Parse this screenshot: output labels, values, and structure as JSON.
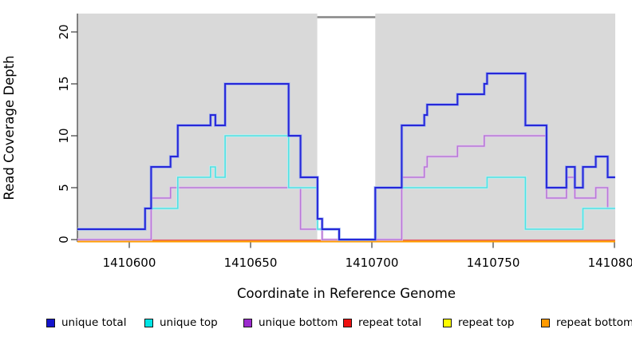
{
  "chart_data": {
    "type": "line",
    "step": "post",
    "title": "",
    "xlabel": "Coordinate in Reference Genome",
    "ylabel": "Read Coverage Depth",
    "xlim": [
      1410578.3,
      1410800.3
    ],
    "ylim": [
      0,
      21.8
    ],
    "x_ticks": [
      1410600,
      1410650,
      1410700,
      1410750,
      1410800
    ],
    "y_ticks": [
      0,
      5,
      10,
      15,
      20
    ],
    "grid": false,
    "plot_background": "#d9d9d9",
    "axis_color": "#3c3c3c",
    "masked_region": {
      "x_start": 1410677.5,
      "x_end": 1410701.4,
      "color": "#ffffff",
      "marker_color": "#8a8a8a"
    },
    "legend_position": "bottom",
    "series": [
      {
        "key": "unique_total",
        "name": "unique total",
        "color": "#2727d8",
        "legend_fill": "#1414cc",
        "points": [
          [
            1410578.3,
            1
          ],
          [
            1410606.5,
            3
          ],
          [
            1410609,
            7
          ],
          [
            1410617,
            8
          ],
          [
            1410620,
            11
          ],
          [
            1410633.5,
            12
          ],
          [
            1410635.5,
            11
          ],
          [
            1410639.5,
            15
          ],
          [
            1410665.7,
            10
          ],
          [
            1410670.6,
            6
          ],
          [
            1410677.6,
            2
          ],
          [
            1410679.5,
            1
          ],
          [
            1410686.5,
            0
          ],
          [
            1410701.4,
            5
          ],
          [
            1410712.3,
            11
          ],
          [
            1410721.6,
            12
          ],
          [
            1410722.8,
            13
          ],
          [
            1410735.3,
            14
          ],
          [
            1410746.3,
            15
          ],
          [
            1410747.5,
            16
          ],
          [
            1410763.3,
            11
          ],
          [
            1410772,
            5
          ],
          [
            1410780.2,
            7
          ],
          [
            1410783.7,
            5
          ],
          [
            1410787,
            7
          ],
          [
            1410792.3,
            8
          ],
          [
            1410797.2,
            6
          ]
        ]
      },
      {
        "key": "unique_top",
        "name": "unique top",
        "color": "#52dfe3",
        "legend_fill": "#00e5e5",
        "points": [
          [
            1410578.3,
            1
          ],
          [
            1410606.5,
            3
          ],
          [
            1410620,
            6
          ],
          [
            1410633.5,
            7
          ],
          [
            1410635.5,
            6
          ],
          [
            1410639.5,
            10
          ],
          [
            1410665.7,
            5
          ],
          [
            1410677.6,
            1
          ],
          [
            1410686.5,
            0
          ],
          [
            1410701.4,
            5
          ],
          [
            1410747.5,
            6
          ],
          [
            1410763.3,
            1
          ],
          [
            1410787,
            3
          ]
        ]
      },
      {
        "key": "unique_bottom",
        "name": "unique bottom",
        "color": "#b878d6",
        "legend_fill": "#9c2bce",
        "points": [
          [
            1410578.3,
            0
          ],
          [
            1410609,
            4
          ],
          [
            1410617,
            5
          ],
          [
            1410670.6,
            1
          ],
          [
            1410679.5,
            0
          ],
          [
            1410712.3,
            6
          ],
          [
            1410721.6,
            7
          ],
          [
            1410722.8,
            8
          ],
          [
            1410735.3,
            9
          ],
          [
            1410746.3,
            10
          ],
          [
            1410772,
            4
          ],
          [
            1410780.2,
            6
          ],
          [
            1410783.7,
            4
          ],
          [
            1410792.3,
            5
          ],
          [
            1410797.2,
            3
          ]
        ]
      },
      {
        "key": "repeat_total",
        "name": "repeat total",
        "color": "#e25f6f",
        "legend_fill": "#ee1111",
        "points": [
          [
            1410578.3,
            0
          ]
        ]
      },
      {
        "key": "repeat_top",
        "name": "repeat top",
        "color": "#ffff00",
        "legend_fill": "#fdfd00",
        "points": [
          [
            1410578.3,
            0
          ]
        ]
      },
      {
        "key": "repeat_bottom",
        "name": "repeat bottom",
        "color": "#ff9d00",
        "legend_fill": "#ff9a00",
        "points": [
          [
            1410578.3,
            0
          ]
        ]
      }
    ]
  }
}
